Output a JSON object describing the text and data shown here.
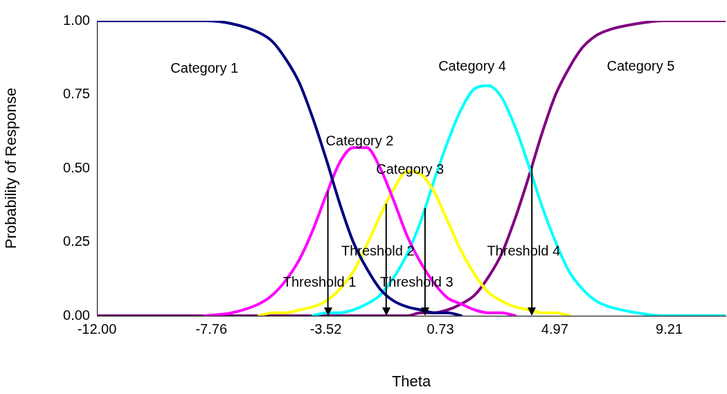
{
  "chart_data": {
    "type": "line",
    "xlabel": "Theta",
    "ylabel": "Probability of Response",
    "x": [
      -12,
      -11,
      -10,
      -9,
      -8,
      -7,
      -6,
      -5.5,
      -5,
      -4.5,
      -4,
      -3.5,
      -3,
      -2.5,
      -2,
      -1.5,
      -1,
      -0.5,
      0,
      0.5,
      1,
      1.5,
      2,
      2.5,
      3,
      3.5,
      4,
      4.5,
      5,
      5.5,
      6,
      6.5,
      7,
      8,
      9,
      10,
      11.3
    ],
    "series": [
      {
        "name": "Category 1",
        "color": "#000080",
        "values": [
          1,
          1,
          1,
          1,
          1,
          0.99,
          0.96,
          0.93,
          0.87,
          0.79,
          0.67,
          0.53,
          0.38,
          0.25,
          0.16,
          0.09,
          0.05,
          0.03,
          0.02,
          0.01,
          0.01,
          0,
          null,
          null,
          null,
          null,
          null,
          null,
          null,
          null,
          null,
          null,
          null,
          null,
          null,
          null,
          null
        ]
      },
      {
        "name": "Category 2",
        "color": "#ff00ff",
        "values": [
          null,
          null,
          null,
          null,
          0,
          0.01,
          0.04,
          0.07,
          0.12,
          0.19,
          0.29,
          0.41,
          0.52,
          0.57,
          0.57,
          0.5,
          0.39,
          0.27,
          0.18,
          0.11,
          0.06,
          0.04,
          0.02,
          0.01,
          0.01,
          0,
          null,
          null,
          null,
          null,
          null,
          null,
          null,
          null,
          null,
          null,
          null
        ]
      },
      {
        "name": "Category 3",
        "color": "#ffff00",
        "values": [
          null,
          null,
          null,
          null,
          null,
          null,
          0,
          0.01,
          0.01,
          0.02,
          0.03,
          0.05,
          0.09,
          0.15,
          0.24,
          0.34,
          0.43,
          0.49,
          0.48,
          0.42,
          0.32,
          0.22,
          0.14,
          0.08,
          0.05,
          0.03,
          0.02,
          0.01,
          0.01,
          0,
          null,
          null,
          null,
          null,
          null,
          null,
          null
        ]
      },
      {
        "name": "Category 4",
        "color": "#00ffff",
        "values": [
          null,
          null,
          null,
          null,
          null,
          null,
          null,
          null,
          null,
          null,
          0,
          0.01,
          0.01,
          0.02,
          0.04,
          0.07,
          0.13,
          0.21,
          0.32,
          0.46,
          0.59,
          0.7,
          0.77,
          0.78,
          0.74,
          0.64,
          0.51,
          0.37,
          0.25,
          0.15,
          0.09,
          0.05,
          0.03,
          0.01,
          0,
          0,
          0
        ]
      },
      {
        "name": "Category 5",
        "color": "#800080",
        "values": [
          0,
          0,
          0,
          0,
          0,
          0,
          0,
          0,
          0,
          0,
          0,
          0,
          0,
          0,
          0,
          0,
          0,
          0,
          0.01,
          0.01,
          0.02,
          0.04,
          0.07,
          0.13,
          0.21,
          0.33,
          0.47,
          0.62,
          0.75,
          0.84,
          0.91,
          0.95,
          0.97,
          0.99,
          1,
          1,
          1
        ]
      }
    ],
    "xlim": [
      -12,
      11.3
    ],
    "xticks": [
      {
        "value": -12,
        "label": "-12.00"
      },
      -7.76,
      -3.52,
      0.73,
      4.97,
      9.21
    ],
    "ylim": [
      0,
      1
    ],
    "yticks": [
      {
        "value": 0,
        "label": "0.00"
      },
      {
        "value": 0.25,
        "label": "0.25"
      },
      {
        "value": 0.5,
        "label": "0.50"
      },
      {
        "value": 0.75,
        "label": "0.75"
      },
      {
        "value": 1,
        "label": "1.00"
      }
    ],
    "ref_lines": [
      {
        "axis": "x",
        "value": -3.44,
        "label": "Threshold 1",
        "color": "#000000"
      },
      {
        "axis": "x",
        "value": -1.28,
        "label": "Threshold 2",
        "color": "#000000"
      },
      {
        "axis": "x",
        "value": 0.16,
        "label": "Threshold 3",
        "color": "#000000"
      },
      {
        "axis": "x",
        "value": 4.12,
        "label": "Threshold 4",
        "color": "#000000"
      }
    ],
    "grid": false,
    "legend": false,
    "marker": "none",
    "line_style": "solid"
  }
}
